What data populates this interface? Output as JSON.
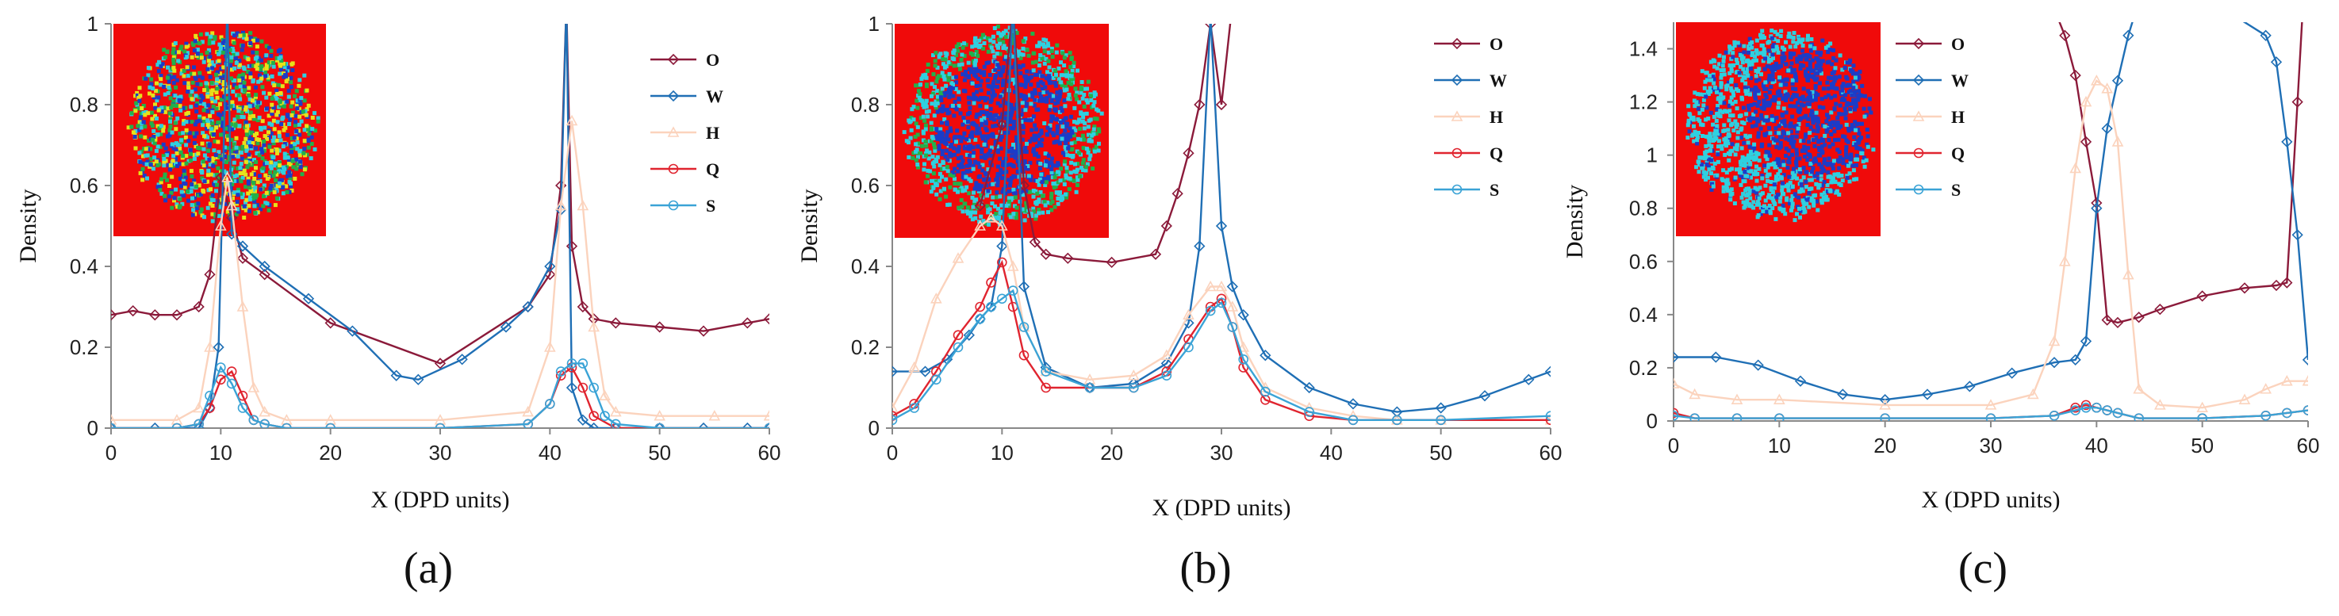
{
  "figure": {
    "colors": {
      "O": "#8b1a3a",
      "W": "#1f6fb5",
      "H": "#fbd3bd",
      "Q": "#e0242f",
      "S": "#3aa3d6"
    },
    "inset_description": "micelle snapshot"
  },
  "chart_data": [
    {
      "type": "line",
      "panel_label": "(a)",
      "xlabel": "X  (DPD  units)",
      "ylabel": "Density",
      "xlim": [
        0,
        60
      ],
      "ylim": [
        0,
        1
      ],
      "xticks": [
        0,
        10,
        20,
        30,
        40,
        50,
        60
      ],
      "yticks": [
        0,
        0.2,
        0.4,
        0.6,
        0.8,
        1
      ],
      "ytick_labels": [
        "0",
        "0.2",
        "0.4",
        "0.6",
        "0.8",
        "1"
      ],
      "legend": [
        "O",
        "W",
        "H",
        "Q",
        "S"
      ],
      "inset": {
        "colors": [
          "#1b3cc8",
          "#2fd0e0",
          "#e7e21a",
          "#22b04a"
        ],
        "style": "mixed"
      },
      "series": [
        {
          "name": "O",
          "color": "#8b1a3a",
          "marker": "diamond",
          "x": [
            0,
            2,
            4,
            6,
            8,
            9,
            10,
            11,
            12,
            14,
            20,
            30,
            38,
            40,
            41,
            41.5,
            42,
            43,
            44,
            46,
            50,
            54,
            58,
            60
          ],
          "y": [
            0.28,
            0.29,
            0.28,
            0.28,
            0.3,
            0.38,
            0.62,
            0.52,
            0.42,
            0.38,
            0.26,
            0.16,
            0.3,
            0.38,
            0.6,
            1.05,
            0.45,
            0.3,
            0.27,
            0.26,
            0.25,
            0.24,
            0.26,
            0.27
          ]
        },
        {
          "name": "W",
          "color": "#1f6fb5",
          "marker": "diamond",
          "x": [
            0,
            4,
            8,
            9,
            9.8,
            10.6,
            11,
            12,
            14,
            18,
            22,
            26,
            28,
            32,
            36,
            38,
            40,
            41,
            41.5,
            42,
            43,
            44,
            46,
            50,
            54,
            58,
            60
          ],
          "y": [
            0,
            0,
            0,
            0.05,
            0.2,
            1.05,
            0.48,
            0.45,
            0.4,
            0.32,
            0.24,
            0.13,
            0.12,
            0.17,
            0.25,
            0.3,
            0.4,
            0.54,
            1.05,
            0.1,
            0.02,
            0,
            0,
            0,
            0,
            0,
            0
          ]
        },
        {
          "name": "H",
          "color": "#fbd3bd",
          "marker": "triangle",
          "x": [
            0,
            6,
            8,
            9,
            10,
            10.6,
            11,
            12,
            13,
            14,
            16,
            20,
            30,
            38,
            40,
            41,
            42,
            43,
            44,
            45,
            46,
            50,
            55,
            60
          ],
          "y": [
            0.02,
            0.02,
            0.05,
            0.2,
            0.5,
            0.62,
            0.55,
            0.3,
            0.1,
            0.04,
            0.02,
            0.02,
            0.02,
            0.04,
            0.2,
            0.55,
            0.76,
            0.55,
            0.25,
            0.08,
            0.04,
            0.03,
            0.03,
            0.03
          ]
        },
        {
          "name": "Q",
          "color": "#e0242f",
          "marker": "circle",
          "x": [
            0,
            6,
            8,
            9,
            10,
            11,
            12,
            13,
            14,
            16,
            20,
            30,
            38,
            40,
            41,
            42,
            43,
            44,
            46,
            50,
            60
          ],
          "y": [
            0,
            0,
            0.01,
            0.05,
            0.12,
            0.14,
            0.08,
            0.02,
            0.01,
            0,
            0,
            0,
            0.01,
            0.06,
            0.13,
            0.15,
            0.1,
            0.03,
            0,
            0,
            0
          ]
        },
        {
          "name": "S",
          "color": "#3aa3d6",
          "marker": "circle",
          "x": [
            0,
            6,
            8,
            9,
            10,
            11,
            12,
            13,
            14,
            16,
            20,
            30,
            38,
            40,
            41,
            42,
            43,
            44,
            45,
            46,
            50,
            60
          ],
          "y": [
            0,
            0,
            0.01,
            0.08,
            0.15,
            0.11,
            0.05,
            0.02,
            0.01,
            0,
            0,
            0,
            0.01,
            0.06,
            0.14,
            0.16,
            0.16,
            0.1,
            0.03,
            0.01,
            0,
            0
          ]
        }
      ]
    },
    {
      "type": "line",
      "panel_label": "(b)",
      "xlabel": "X  (DPD  units)",
      "ylabel": "Density",
      "xlim": [
        0,
        60
      ],
      "ylim": [
        0,
        1
      ],
      "xticks": [
        0,
        10,
        20,
        30,
        40,
        50,
        60
      ],
      "yticks": [
        0,
        0.2,
        0.4,
        0.6,
        0.8,
        1
      ],
      "ytick_labels": [
        "0",
        "0.2",
        "0.4",
        "0.6",
        "0.8",
        "1"
      ],
      "legend": [
        "O",
        "W",
        "H",
        "Q",
        "S"
      ],
      "inset": {
        "colors": [
          "#1b3cc8",
          "#2fd0e0",
          "#22b04a"
        ],
        "style": "core-shell"
      },
      "series": [
        {
          "name": "O",
          "color": "#8b1a3a",
          "marker": "diamond",
          "x": [
            8,
            10,
            11,
            12,
            13,
            14,
            16,
            20,
            24,
            25,
            26,
            27,
            28,
            29,
            30,
            31
          ],
          "y": [
            0.55,
            0.75,
            1.05,
            0.6,
            0.46,
            0.43,
            0.42,
            0.41,
            0.43,
            0.5,
            0.58,
            0.68,
            0.8,
            1.0,
            0.8,
            1.05
          ]
        },
        {
          "name": "W",
          "color": "#1f6fb5",
          "marker": "diamond",
          "x": [
            0,
            3,
            5,
            7,
            8,
            9,
            10,
            11,
            12,
            14,
            18,
            22,
            25,
            27,
            28,
            29,
            30,
            31,
            32,
            34,
            38,
            42,
            46,
            50,
            54,
            58,
            60
          ],
          "y": [
            0.14,
            0.14,
            0.17,
            0.23,
            0.27,
            0.3,
            0.45,
            1.05,
            0.35,
            0.15,
            0.1,
            0.11,
            0.16,
            0.26,
            0.45,
            1.02,
            0.5,
            0.35,
            0.28,
            0.18,
            0.1,
            0.06,
            0.04,
            0.05,
            0.08,
            0.12,
            0.14
          ]
        },
        {
          "name": "H",
          "color": "#fbd3bd",
          "marker": "triangle",
          "x": [
            0,
            2,
            4,
            6,
            8,
            9,
            10,
            11,
            12,
            14,
            18,
            22,
            25,
            27,
            29,
            30,
            31,
            32,
            34,
            38,
            42,
            46,
            50,
            60
          ],
          "y": [
            0.05,
            0.15,
            0.32,
            0.42,
            0.5,
            0.52,
            0.5,
            0.4,
            0.25,
            0.14,
            0.12,
            0.13,
            0.18,
            0.28,
            0.35,
            0.35,
            0.3,
            0.2,
            0.1,
            0.05,
            0.03,
            0.02,
            0.02,
            0.02
          ]
        },
        {
          "name": "Q",
          "color": "#e0242f",
          "marker": "circle",
          "x": [
            0,
            2,
            4,
            6,
            8,
            9,
            10,
            11,
            12,
            14,
            18,
            22,
            25,
            27,
            29,
            30,
            31,
            32,
            34,
            38,
            42,
            46,
            50,
            60
          ],
          "y": [
            0.03,
            0.06,
            0.14,
            0.23,
            0.3,
            0.36,
            0.41,
            0.3,
            0.18,
            0.1,
            0.1,
            0.1,
            0.14,
            0.22,
            0.3,
            0.32,
            0.25,
            0.15,
            0.07,
            0.03,
            0.02,
            0.02,
            0.02,
            0.02
          ]
        },
        {
          "name": "S",
          "color": "#3aa3d6",
          "marker": "circle",
          "x": [
            0,
            2,
            4,
            6,
            8,
            9,
            10,
            11,
            12,
            14,
            18,
            22,
            25,
            27,
            29,
            30,
            31,
            32,
            34,
            38,
            42,
            46,
            50,
            60
          ],
          "y": [
            0.02,
            0.05,
            0.12,
            0.2,
            0.27,
            0.3,
            0.32,
            0.34,
            0.25,
            0.14,
            0.1,
            0.1,
            0.13,
            0.2,
            0.29,
            0.31,
            0.25,
            0.17,
            0.09,
            0.04,
            0.02,
            0.02,
            0.02,
            0.03
          ]
        }
      ]
    },
    {
      "type": "line",
      "panel_label": "(c)",
      "xlabel": "X  (DPD  units)",
      "ylabel": "Density",
      "xlim": [
        0,
        60
      ],
      "ylim": [
        0,
        1.5
      ],
      "xticks": [
        0,
        10,
        20,
        30,
        40,
        50,
        60
      ],
      "yticks": [
        0,
        0.2,
        0.4,
        0.6,
        0.8,
        1,
        1.2,
        1.4
      ],
      "ytick_labels": [
        "0",
        "0.2",
        "0.4",
        "0.6",
        "0.8",
        "1",
        "1.2",
        "1.4"
      ],
      "legend": [
        "O",
        "W",
        "H",
        "Q",
        "S"
      ],
      "inset": {
        "colors": [
          "#1b3cc8",
          "#2fd0e0"
        ],
        "style": "janus"
      },
      "series": [
        {
          "name": "O",
          "color": "#8b1a3a",
          "marker": "diamond",
          "x": [
            36,
            37,
            38,
            39,
            40,
            41,
            42,
            44,
            46,
            50,
            54,
            57,
            58,
            59,
            59.5
          ],
          "y": [
            1.55,
            1.45,
            1.3,
            1.05,
            0.82,
            0.38,
            0.37,
            0.39,
            0.42,
            0.47,
            0.5,
            0.51,
            0.52,
            1.2,
            1.55
          ]
        },
        {
          "name": "W",
          "color": "#1f6fb5",
          "marker": "diamond",
          "x": [
            0,
            4,
            8,
            12,
            16,
            20,
            24,
            28,
            32,
            36,
            38,
            39,
            40,
            41,
            42,
            43,
            44,
            50,
            56,
            57,
            58,
            59,
            60
          ],
          "y": [
            0.24,
            0.24,
            0.21,
            0.15,
            0.1,
            0.08,
            0.1,
            0.13,
            0.18,
            0.22,
            0.23,
            0.3,
            0.8,
            1.1,
            1.28,
            1.45,
            1.58,
            1.6,
            1.45,
            1.35,
            1.05,
            0.7,
            0.23
          ]
        },
        {
          "name": "H",
          "color": "#fbd3bd",
          "marker": "triangle",
          "x": [
            0,
            2,
            6,
            10,
            20,
            30,
            34,
            36,
            37,
            38,
            39,
            40,
            41,
            42,
            43,
            44,
            46,
            50,
            54,
            56,
            58,
            60
          ],
          "y": [
            0.14,
            0.1,
            0.08,
            0.08,
            0.06,
            0.06,
            0.1,
            0.3,
            0.6,
            0.95,
            1.2,
            1.28,
            1.25,
            1.05,
            0.55,
            0.12,
            0.06,
            0.05,
            0.08,
            0.12,
            0.15,
            0.15
          ]
        },
        {
          "name": "Q",
          "color": "#e0242f",
          "marker": "circle",
          "x": [
            0,
            2,
            6,
            10,
            20,
            30,
            36,
            38,
            39,
            40,
            41,
            42,
            44,
            50,
            56,
            58,
            60
          ],
          "y": [
            0.03,
            0.01,
            0.01,
            0.01,
            0.01,
            0.01,
            0.02,
            0.05,
            0.06,
            0.05,
            0.04,
            0.03,
            0.01,
            0.01,
            0.02,
            0.03,
            0.04
          ]
        },
        {
          "name": "S",
          "color": "#3aa3d6",
          "marker": "circle",
          "x": [
            0,
            2,
            6,
            10,
            20,
            30,
            36,
            38,
            39,
            40,
            41,
            42,
            44,
            50,
            56,
            58,
            60
          ],
          "y": [
            0.02,
            0.01,
            0.01,
            0.01,
            0.01,
            0.01,
            0.02,
            0.04,
            0.05,
            0.05,
            0.04,
            0.03,
            0.01,
            0.01,
            0.02,
            0.03,
            0.04
          ]
        }
      ]
    }
  ]
}
